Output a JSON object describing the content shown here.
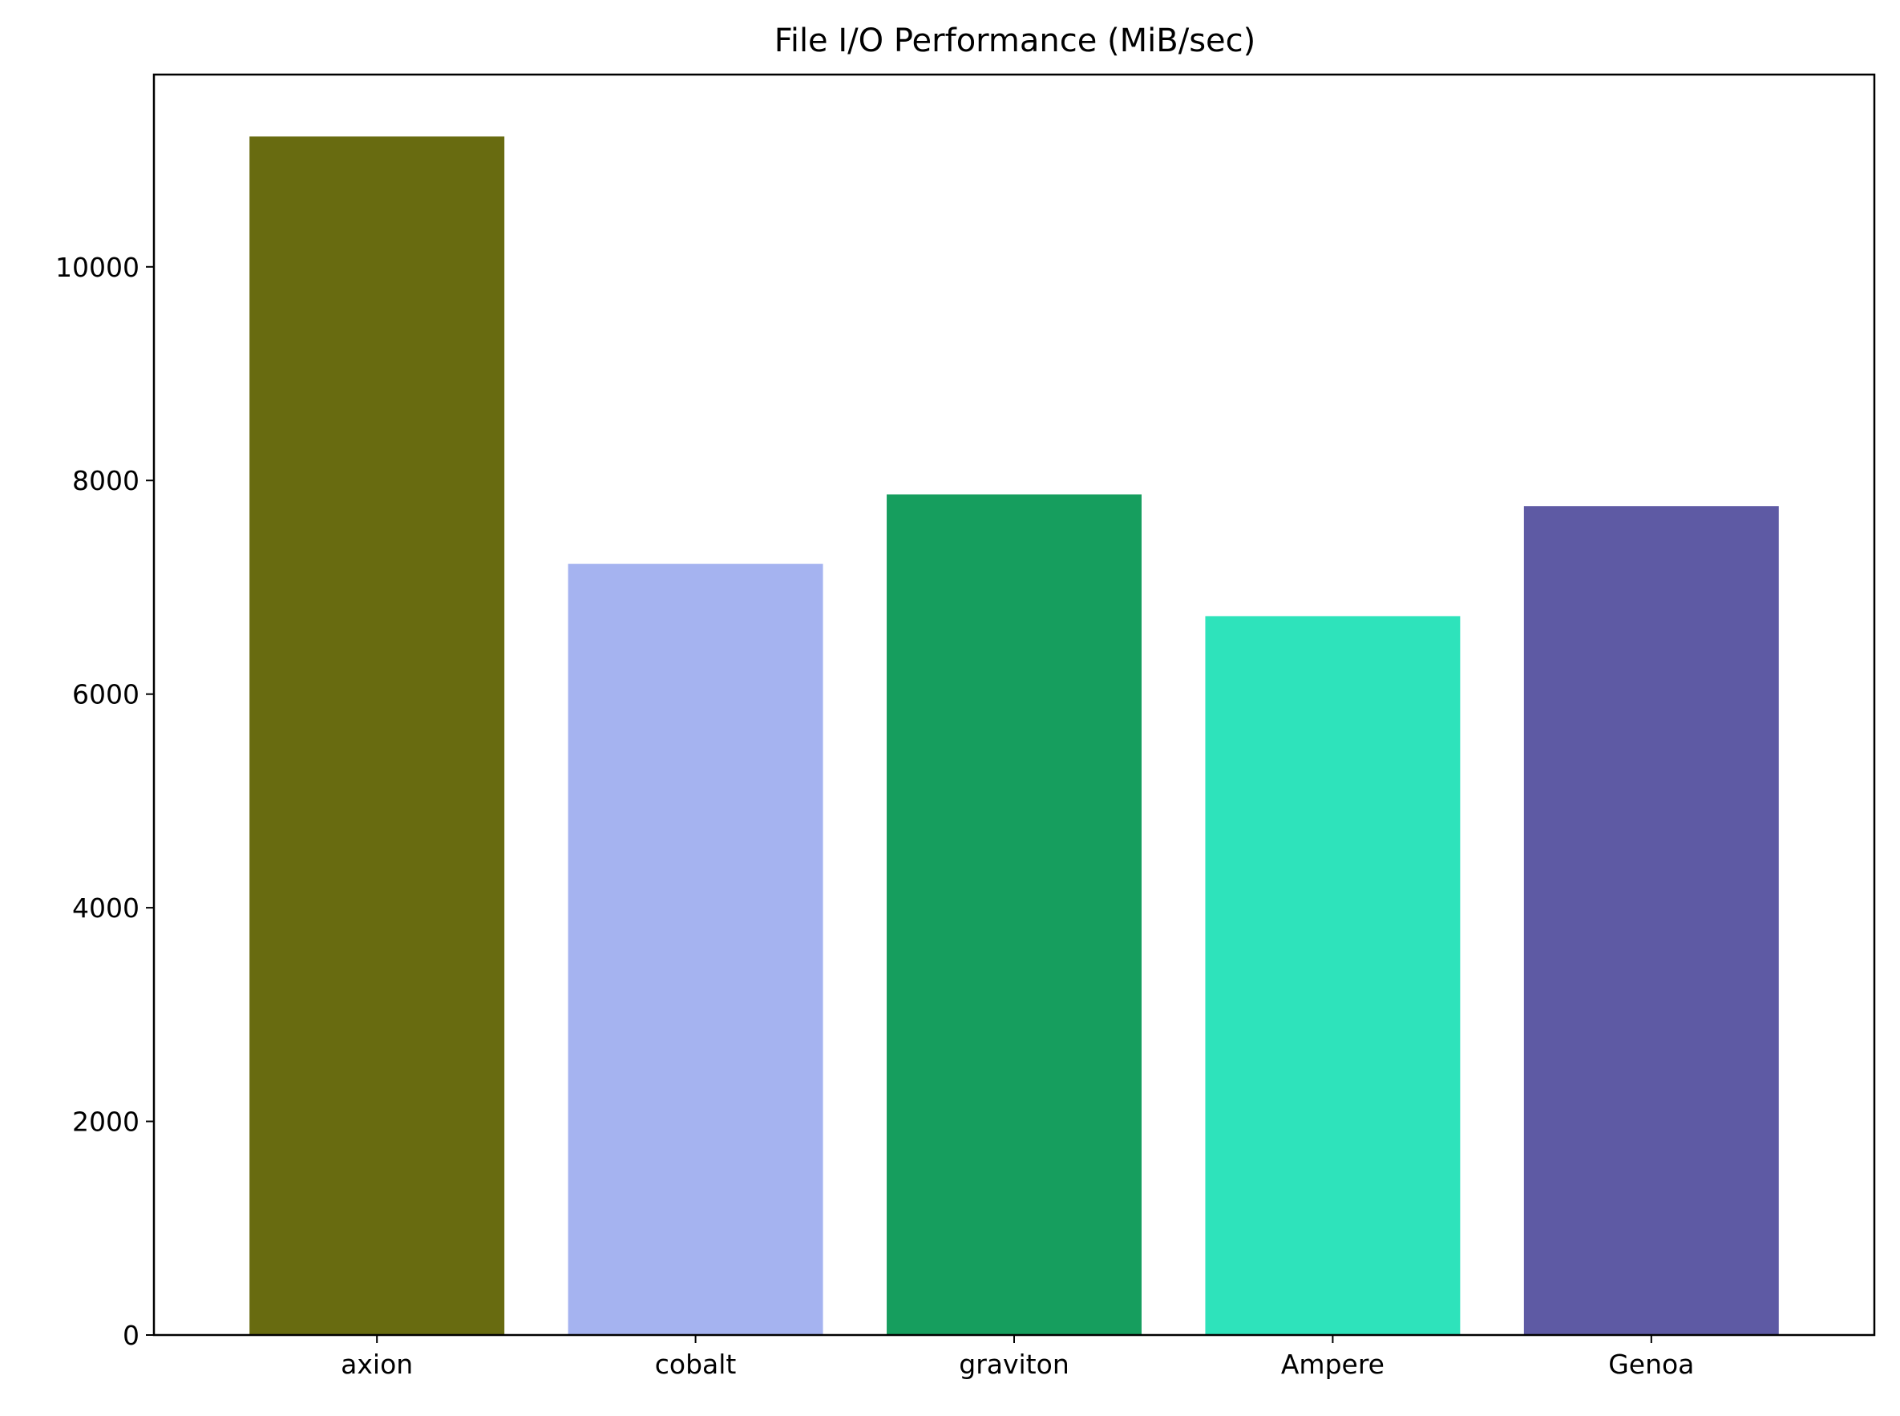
{
  "chart_data": {
    "type": "bar",
    "title": "File I/O Performance (MiB/sec)",
    "xlabel": "",
    "ylabel": "",
    "categories": [
      "axion",
      "cobalt",
      "graviton",
      "Ampere",
      "Genoa"
    ],
    "values": [
      11220,
      7220,
      7870,
      6730,
      7760
    ],
    "colors": [
      "#686b10",
      "#a5b3f0",
      "#169e5e",
      "#2ee3bb",
      "#5e5aa4"
    ],
    "ylim": [
      0,
      11800
    ],
    "yticks": [
      0,
      2000,
      4000,
      6000,
      8000,
      10000
    ],
    "ytick_labels": [
      "0",
      "2000",
      "4000",
      "6000",
      "8000",
      "10000"
    ],
    "grid": false,
    "legend": "none"
  }
}
